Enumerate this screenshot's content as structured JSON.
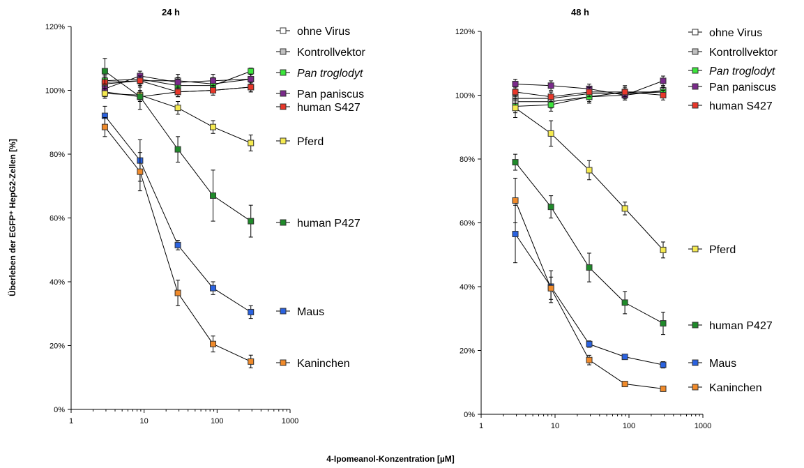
{
  "figure": {
    "xlabel": "4-Ipomeanol-Konzentration [µM]",
    "ylabel": "Überleben der EGFP⁺ HepG2-Zellen [%]"
  },
  "chart_data": [
    {
      "type": "line",
      "title": "24 h",
      "xscale": "log",
      "xlim": [
        1,
        1000
      ],
      "xticks": [
        1,
        10,
        100,
        1000
      ],
      "ylim": [
        0,
        120
      ],
      "yticks": [
        0,
        20,
        40,
        60,
        80,
        100,
        120
      ],
      "ytick_labels": [
        "0%",
        "20%",
        "40%",
        "60%",
        "80%",
        "100%",
        "120%"
      ],
      "grid": false,
      "legend_position": "right, beside the line ends",
      "x": [
        2.9,
        8.8,
        29,
        88,
        290
      ],
      "series": [
        {
          "name": "ohne Virus",
          "color": "#ffffff",
          "italic": false,
          "values": [
            99.5,
            98,
            99.5,
            100,
            101
          ],
          "errors": [
            1.5,
            1.5,
            1.5,
            1.5,
            1.5
          ]
        },
        {
          "name": "Kontrollvektor",
          "color": "#c0c0c0",
          "italic": false,
          "values": [
            102,
            103,
            103,
            102,
            103.5
          ],
          "errors": [
            2,
            2,
            2,
            2,
            1.5
          ]
        },
        {
          "name": "Pan troglodyt",
          "color": "#3be53b",
          "italic": true,
          "values": [
            103,
            103.5,
            101.5,
            101.5,
            106
          ],
          "errors": [
            2,
            1.5,
            2,
            2,
            1
          ]
        },
        {
          "name": "Pan paniscus",
          "color": "#7a2a8a",
          "italic": false,
          "values": [
            100.5,
            104.5,
            102.5,
            103,
            103.5
          ],
          "errors": [
            2,
            1.5,
            1.5,
            2,
            1.5
          ]
        },
        {
          "name": "human S427",
          "color": "#e8372a",
          "italic": false,
          "values": [
            102.5,
            103,
            99.5,
            100,
            101
          ],
          "errors": [
            2,
            1.5,
            1.5,
            1.5,
            1.5
          ]
        },
        {
          "name": "Pferd",
          "color": "#f5ea50",
          "italic": false,
          "values": [
            99,
            98.5,
            94.5,
            88.5,
            83.5
          ],
          "errors": [
            1.5,
            1.5,
            2,
            2,
            2.5
          ]
        },
        {
          "name": "human P427",
          "color": "#1f8a2a",
          "italic": false,
          "values": [
            106,
            98,
            81.5,
            67,
            59
          ],
          "errors": [
            4,
            4,
            4,
            8,
            5
          ]
        },
        {
          "name": "Maus",
          "color": "#2a62e0",
          "italic": false,
          "values": [
            92,
            78,
            51.5,
            38,
            30.5
          ],
          "errors": [
            3,
            6.5,
            1.5,
            2,
            2
          ]
        },
        {
          "name": "Kaninchen",
          "color": "#f08a2a",
          "italic": false,
          "values": [
            88.5,
            74.5,
            36.5,
            20.5,
            15
          ],
          "errors": [
            3,
            6,
            4,
            2.5,
            2
          ]
        }
      ]
    },
    {
      "type": "line",
      "title": "48 h",
      "xscale": "log",
      "xlim": [
        1,
        1000
      ],
      "xticks": [
        1,
        10,
        100,
        1000
      ],
      "ylim": [
        0,
        120
      ],
      "yticks": [
        0,
        20,
        40,
        60,
        80,
        100,
        120
      ],
      "ytick_labels": [
        "0%",
        "20%",
        "40%",
        "60%",
        "80%",
        "100%",
        "120%"
      ],
      "grid": false,
      "legend_position": "right, beside the line ends",
      "x": [
        2.9,
        8.8,
        29,
        88,
        290
      ],
      "series": [
        {
          "name": "ohne Virus",
          "color": "#ffffff",
          "italic": false,
          "values": [
            99,
            99,
            100.5,
            100.5,
            101
          ],
          "errors": [
            2,
            2,
            1.5,
            1.5,
            1.5
          ]
        },
        {
          "name": "Kontrollvektor",
          "color": "#c0c0c0",
          "italic": false,
          "values": [
            98,
            98,
            99.5,
            100,
            101.5
          ],
          "errors": [
            2,
            2,
            1.5,
            1.5,
            1.5
          ]
        },
        {
          "name": "Pan troglodyt",
          "color": "#3be53b",
          "italic": true,
          "values": [
            96.5,
            97,
            99.5,
            101,
            101
          ],
          "errors": [
            2,
            2,
            2,
            2,
            1.5
          ]
        },
        {
          "name": "Pan paniscus",
          "color": "#7a2a8a",
          "italic": false,
          "values": [
            103.5,
            103,
            102,
            100,
            104.5
          ],
          "errors": [
            1.5,
            1.5,
            1.5,
            1.5,
            1.5
          ]
        },
        {
          "name": "human S427",
          "color": "#e8372a",
          "italic": false,
          "values": [
            101,
            99.5,
            101,
            101,
            100
          ],
          "errors": [
            1.5,
            1.5,
            1.5,
            1.5,
            1.5
          ]
        },
        {
          "name": "Pferd",
          "color": "#f5ea50",
          "italic": false,
          "values": [
            96,
            88,
            76.5,
            64.5,
            51.5
          ],
          "errors": [
            3,
            4,
            3,
            2,
            2.5
          ]
        },
        {
          "name": "human P427",
          "color": "#1f8a2a",
          "italic": false,
          "values": [
            79,
            65,
            46,
            35,
            28.5
          ],
          "errors": [
            2.5,
            3.5,
            4.5,
            3.5,
            3.5
          ]
        },
        {
          "name": "Maus",
          "color": "#2a62e0",
          "italic": false,
          "values": [
            56.5,
            40,
            22,
            18,
            15.5
          ],
          "errors": [
            9,
            5,
            1,
            0.5,
            1
          ]
        },
        {
          "name": "Kaninchen",
          "color": "#f08a2a",
          "italic": false,
          "values": [
            67,
            39.5,
            17,
            9.5,
            8
          ],
          "errors": [
            7,
            3.5,
            1.5,
            0.5,
            0.5
          ]
        }
      ]
    }
  ]
}
